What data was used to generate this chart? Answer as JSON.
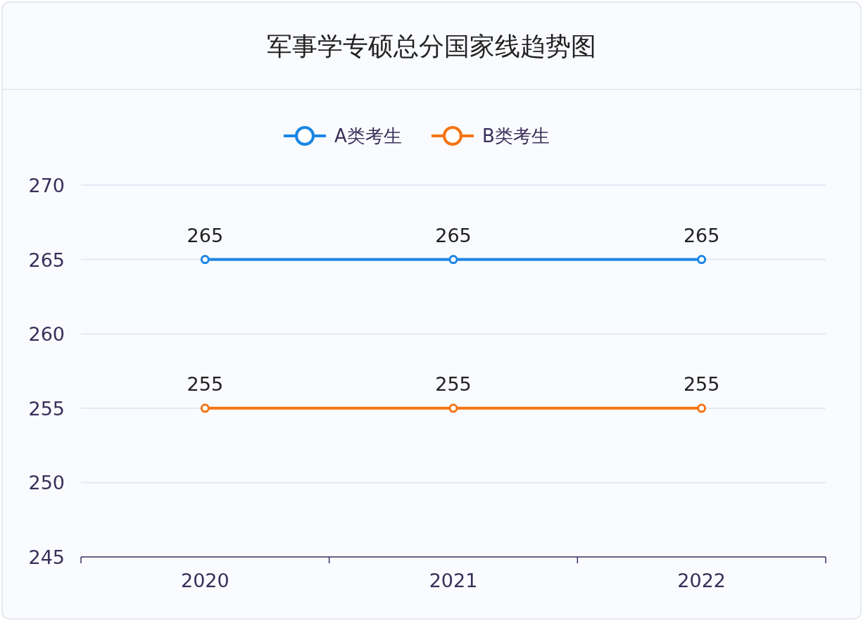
{
  "chart_data": {
    "type": "line",
    "title": "军事学专硕总分国家线趋势图",
    "categories": [
      "2020",
      "2021",
      "2022"
    ],
    "series": [
      {
        "name": "A类考生",
        "color": "#1a85e6",
        "values": [
          265,
          265,
          265
        ]
      },
      {
        "name": "B类考生",
        "color": "#f57414",
        "values": [
          255,
          255,
          255
        ]
      }
    ],
    "ylim": [
      245,
      270
    ],
    "yticks": [
      245,
      250,
      255,
      260,
      265,
      270
    ],
    "grid": "y",
    "legend": "top",
    "marker": "circle",
    "data_labels": true
  }
}
